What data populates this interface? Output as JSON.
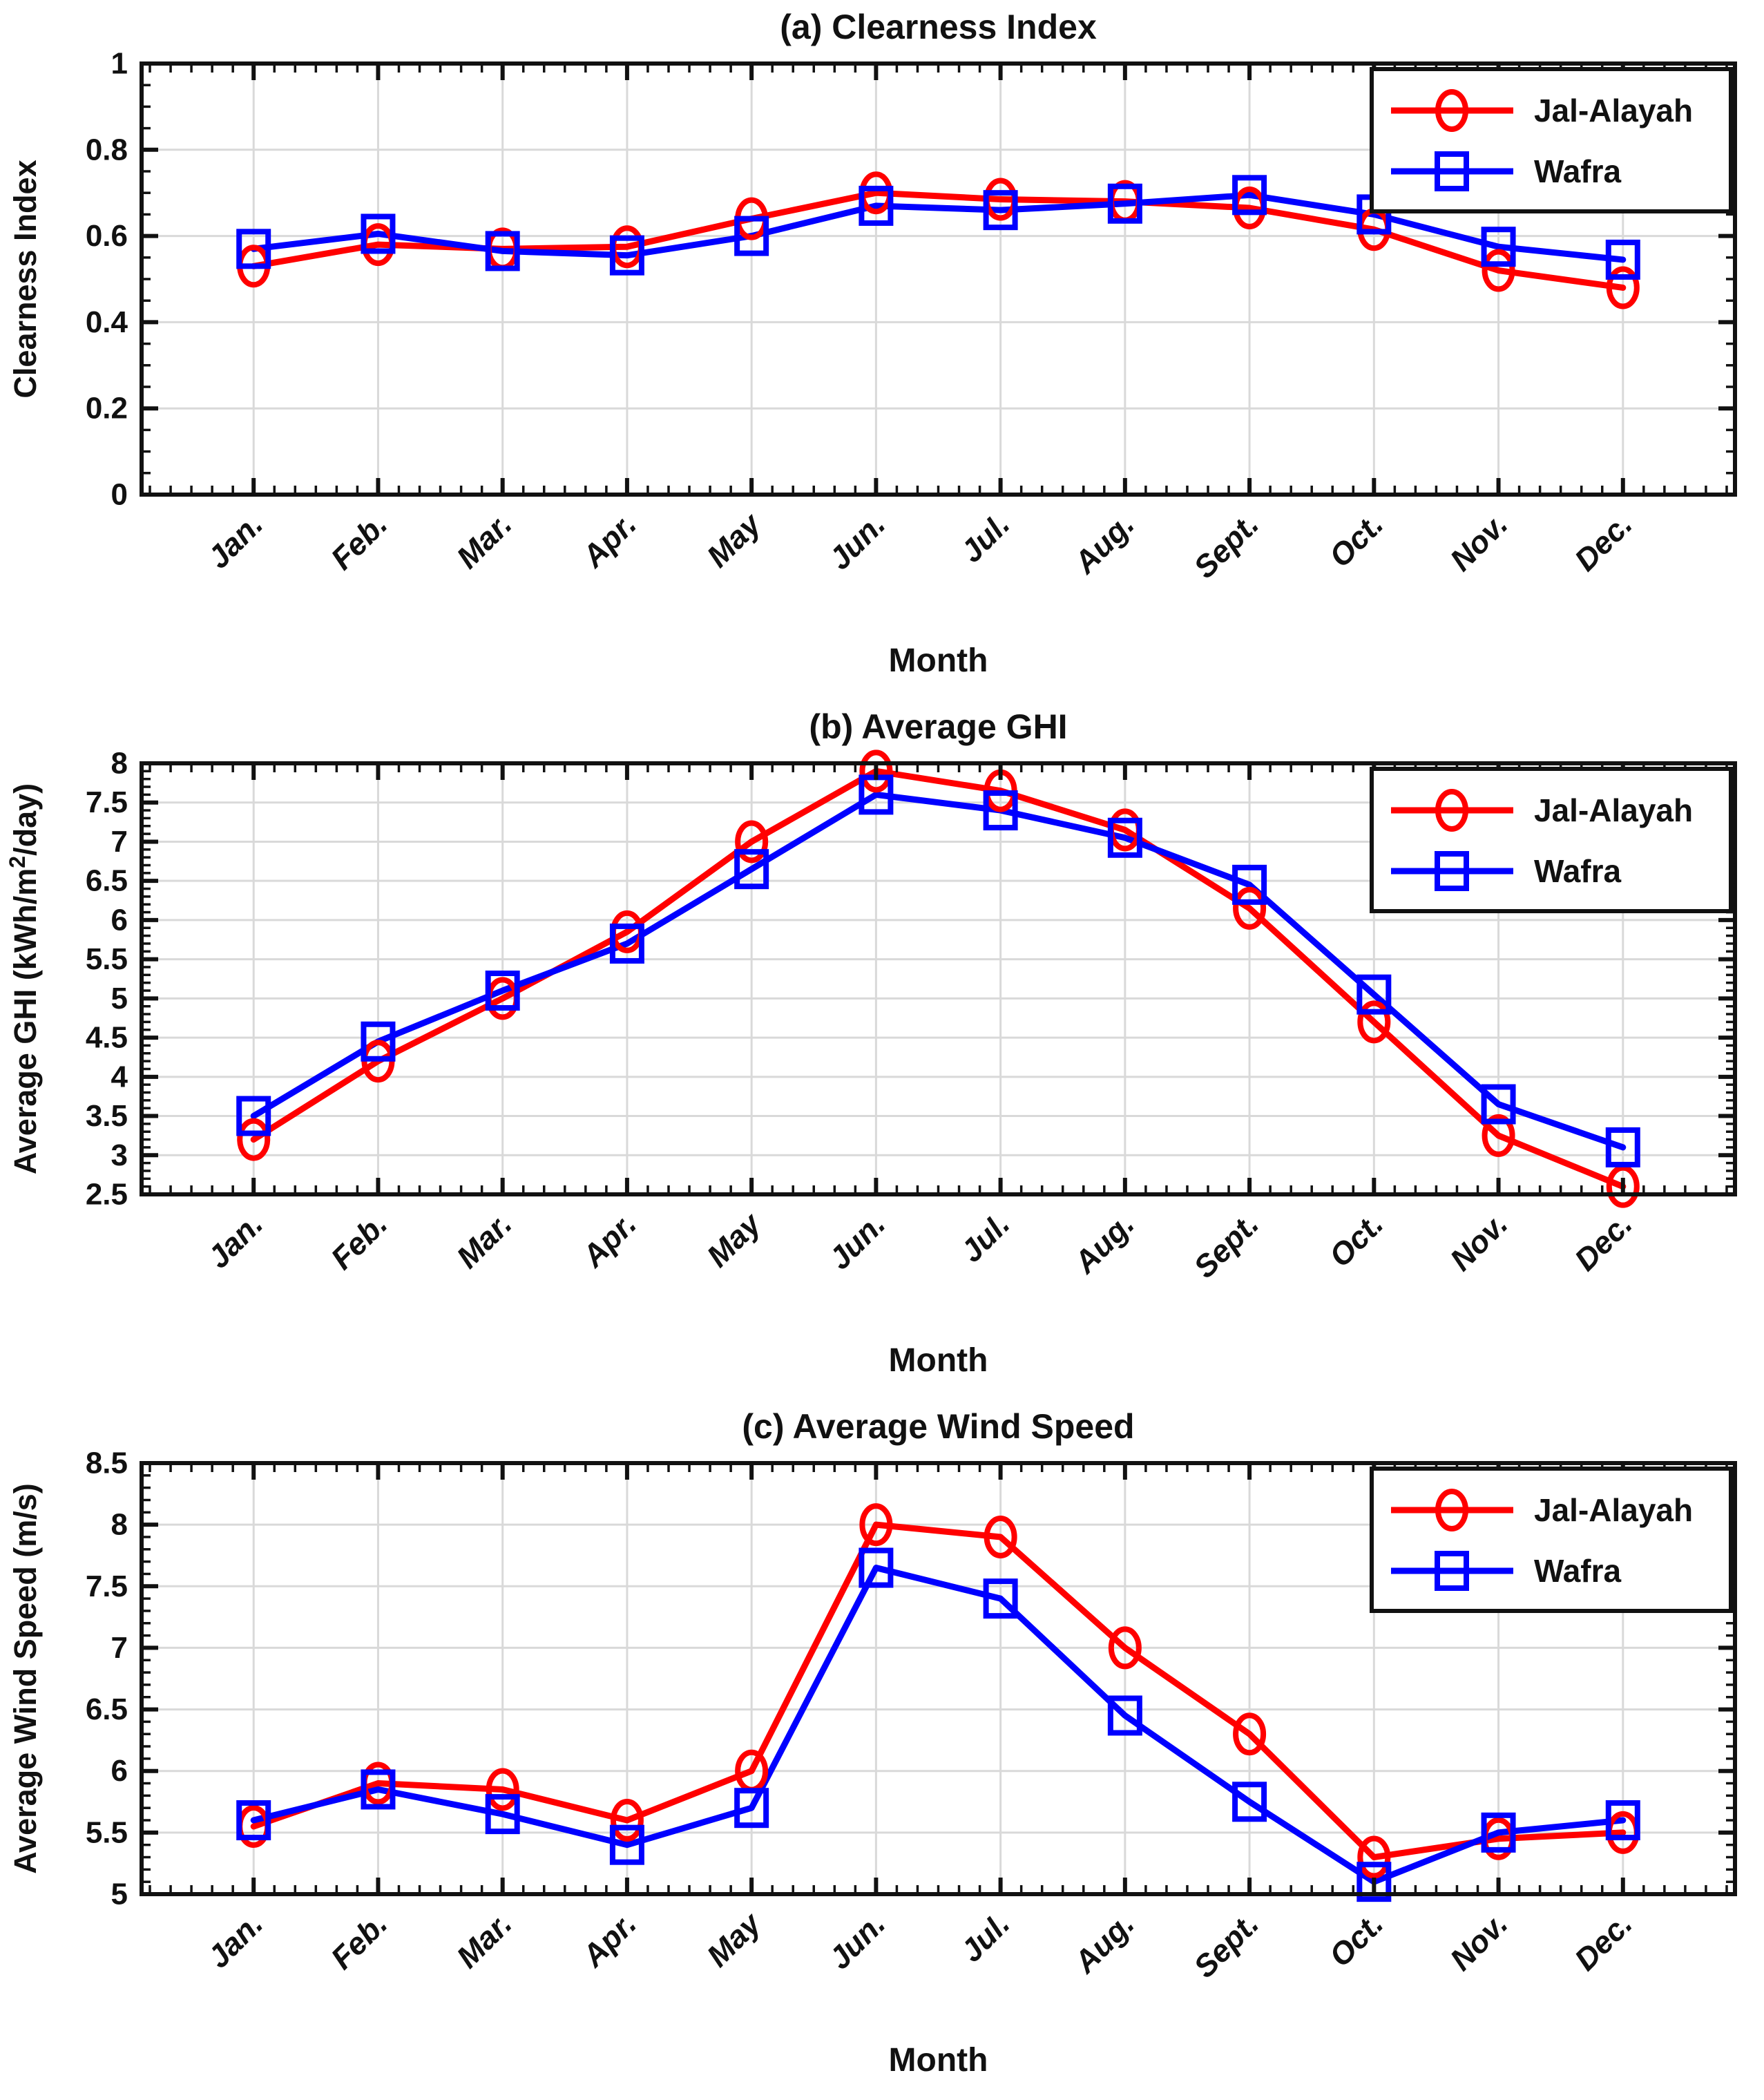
{
  "figure": {
    "xlabel": "Month",
    "months": [
      "Jan.",
      "Feb.",
      "Mar.",
      "Apr.",
      "May",
      "Jun.",
      "Jul.",
      "Aug.",
      "Sept.",
      "Oct.",
      "Nov.",
      "Dec."
    ],
    "legend": {
      "position": "top-right-inside",
      "entries": [
        {
          "label": "Jal-Alayah",
          "color": "#ff0000",
          "marker": "circle"
        },
        {
          "label": "Wafra",
          "color": "#0000ff",
          "marker": "square"
        }
      ]
    },
    "colors": {
      "jal_alayah": "#ff0000",
      "wafra": "#0000ff",
      "grid": "#d9d9d9",
      "axis": "#111111",
      "background": "#ffffff"
    },
    "grid": "on"
  },
  "chart_data": [
    {
      "type": "line",
      "title": "(a) Clearness Index",
      "ylabel": "Clearness Index",
      "xlabel": "Month",
      "ylim": [
        0,
        1
      ],
      "yticks": [
        0,
        0.2,
        0.4,
        0.6,
        0.8,
        1
      ],
      "yminor_step": 0.05,
      "categories": [
        "Jan.",
        "Feb.",
        "Mar.",
        "Apr.",
        "May",
        "Jun.",
        "Jul.",
        "Aug.",
        "Sept.",
        "Oct.",
        "Nov.",
        "Dec."
      ],
      "series": [
        {
          "name": "Jal-Alayah",
          "color": "#ff0000",
          "marker": "circle",
          "values": [
            0.53,
            0.58,
            0.57,
            0.575,
            0.64,
            0.7,
            0.685,
            0.68,
            0.665,
            0.615,
            0.52,
            0.48
          ]
        },
        {
          "name": "Wafra",
          "color": "#0000ff",
          "marker": "square",
          "values": [
            0.57,
            0.605,
            0.565,
            0.555,
            0.6,
            0.67,
            0.66,
            0.675,
            0.695,
            0.65,
            0.575,
            0.545
          ]
        }
      ]
    },
    {
      "type": "line",
      "title": "(b) Average GHI",
      "ylabel": "Average GHI (kWh/m²/day)",
      "xlabel": "Month",
      "ylim": [
        2.5,
        8
      ],
      "yticks": [
        2.5,
        3,
        3.5,
        4,
        4.5,
        5,
        5.5,
        6,
        6.5,
        7,
        7.5,
        8
      ],
      "yminor_step": 0.1,
      "categories": [
        "Jan.",
        "Feb.",
        "Mar.",
        "Apr.",
        "May",
        "Jun.",
        "Jul.",
        "Aug.",
        "Sept.",
        "Oct.",
        "Nov.",
        "Dec."
      ],
      "series": [
        {
          "name": "Jal-Alayah",
          "color": "#ff0000",
          "marker": "circle",
          "values": [
            3.2,
            4.2,
            5.0,
            5.85,
            7.0,
            7.9,
            7.65,
            7.15,
            6.15,
            4.7,
            3.25,
            2.6
          ]
        },
        {
          "name": "Wafra",
          "color": "#0000ff",
          "marker": "square",
          "values": [
            3.5,
            4.45,
            5.1,
            5.7,
            6.65,
            7.6,
            7.4,
            7.05,
            6.45,
            5.05,
            3.65,
            3.1
          ]
        }
      ]
    },
    {
      "type": "line",
      "title": "(c) Average Wind Speed",
      "ylabel": "Average Wind Speed (m/s)",
      "xlabel": "Month",
      "ylim": [
        5,
        8.5
      ],
      "yticks": [
        5,
        5.5,
        6,
        6.5,
        7,
        7.5,
        8,
        8.5
      ],
      "yminor_step": 0.1,
      "categories": [
        "Jan.",
        "Feb.",
        "Mar.",
        "Apr.",
        "May",
        "Jun.",
        "Jul.",
        "Aug.",
        "Sept.",
        "Oct.",
        "Nov.",
        "Dec."
      ],
      "series": [
        {
          "name": "Jal-Alayah",
          "color": "#ff0000",
          "marker": "circle",
          "values": [
            5.55,
            5.9,
            5.85,
            5.6,
            6.0,
            8.0,
            7.9,
            7.0,
            6.3,
            5.3,
            5.45,
            5.5
          ]
        },
        {
          "name": "Wafra",
          "color": "#0000ff",
          "marker": "square",
          "values": [
            5.6,
            5.85,
            5.65,
            5.4,
            5.7,
            7.65,
            7.4,
            6.45,
            5.75,
            5.1,
            5.5,
            5.6
          ]
        }
      ]
    }
  ]
}
